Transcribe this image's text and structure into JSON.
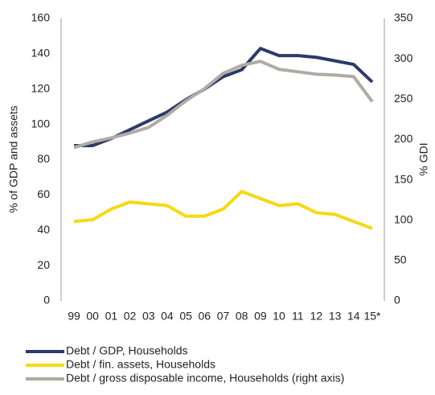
{
  "chart_data": {
    "type": "line",
    "categories": [
      "99",
      "00",
      "01",
      "02",
      "03",
      "04",
      "05",
      "06",
      "07",
      "08",
      "09",
      "10",
      "11",
      "12",
      "13",
      "14",
      "15*"
    ],
    "series": [
      {
        "name": "Debt / GDP, Households",
        "color": "#2b3a6b",
        "values": [
          88,
          88,
          92,
          97,
          102,
          107,
          114,
          120,
          127,
          131,
          143,
          139,
          139,
          138,
          136,
          134,
          124
        ]
      },
      {
        "name": "Debt / fin. assets, Households",
        "color": "#f5d915",
        "values": [
          45,
          46,
          52,
          56,
          55,
          54,
          48,
          48,
          52,
          62,
          58,
          54,
          55,
          50,
          49,
          45,
          41
        ]
      },
      {
        "name": "Debt / gross disposable income, Households (right axis)",
        "color": "#b0aba3",
        "axis": "y2",
        "values": [
          190,
          197,
          202,
          208,
          215,
          230,
          248,
          263,
          282,
          292,
          297,
          287,
          284,
          281,
          280,
          278,
          247
        ]
      }
    ],
    "y_label": "% of GDP and assets",
    "y2_label": "% GDI",
    "ylim": [
      0,
      160
    ],
    "yticks": [
      0,
      20,
      40,
      60,
      80,
      100,
      120,
      140,
      160
    ],
    "y2lim": [
      0,
      350
    ],
    "y2ticks": [
      0,
      50,
      100,
      150,
      200,
      250,
      300,
      350
    ],
    "legend": "bottom",
    "grid": false
  }
}
